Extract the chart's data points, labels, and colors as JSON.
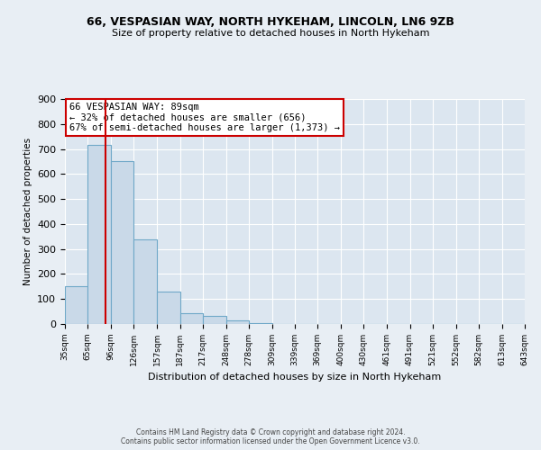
{
  "title": "66, VESPASIAN WAY, NORTH HYKEHAM, LINCOLN, LN6 9ZB",
  "subtitle": "Size of property relative to detached houses in North Hykeham",
  "xlabel": "Distribution of detached houses by size in North Hykeham",
  "ylabel": "Number of detached properties",
  "bar_edges": [
    35,
    65,
    96,
    126,
    157,
    187,
    217,
    248,
    278,
    309,
    339,
    369,
    400,
    430,
    461,
    491,
    521,
    552,
    582,
    613,
    643
  ],
  "bar_heights": [
    152,
    715,
    651,
    340,
    130,
    45,
    32,
    15,
    5,
    0,
    0,
    0,
    0,
    0,
    0,
    0,
    0,
    0,
    0,
    0
  ],
  "bar_color": "#c9d9e8",
  "bar_edge_color": "#6fa8c8",
  "vline_x": 89,
  "vline_color": "#cc0000",
  "annotation_line1": "66 VESPASIAN WAY: 89sqm",
  "annotation_line2": "← 32% of detached houses are smaller (656)",
  "annotation_line3": "67% of semi-detached houses are larger (1,373) →",
  "annotation_box_color": "#ffffff",
  "annotation_box_edge_color": "#cc0000",
  "ylim": [
    0,
    900
  ],
  "yticks": [
    0,
    100,
    200,
    300,
    400,
    500,
    600,
    700,
    800,
    900
  ],
  "tick_labels": [
    "35sqm",
    "65sqm",
    "96sqm",
    "126sqm",
    "157sqm",
    "187sqm",
    "217sqm",
    "248sqm",
    "278sqm",
    "309sqm",
    "339sqm",
    "369sqm",
    "400sqm",
    "430sqm",
    "461sqm",
    "491sqm",
    "521sqm",
    "552sqm",
    "582sqm",
    "613sqm",
    "643sqm"
  ],
  "footer": "Contains HM Land Registry data © Crown copyright and database right 2024.\nContains public sector information licensed under the Open Government Licence v3.0.",
  "bg_color": "#e8eef4",
  "plot_bg_color": "#dce6f0",
  "title_fontsize": 9,
  "subtitle_fontsize": 8,
  "ylabel_fontsize": 7.5,
  "xlabel_fontsize": 8,
  "ytick_fontsize": 8,
  "xtick_fontsize": 6.5,
  "annotation_fontsize": 7.5,
  "footer_fontsize": 5.5
}
